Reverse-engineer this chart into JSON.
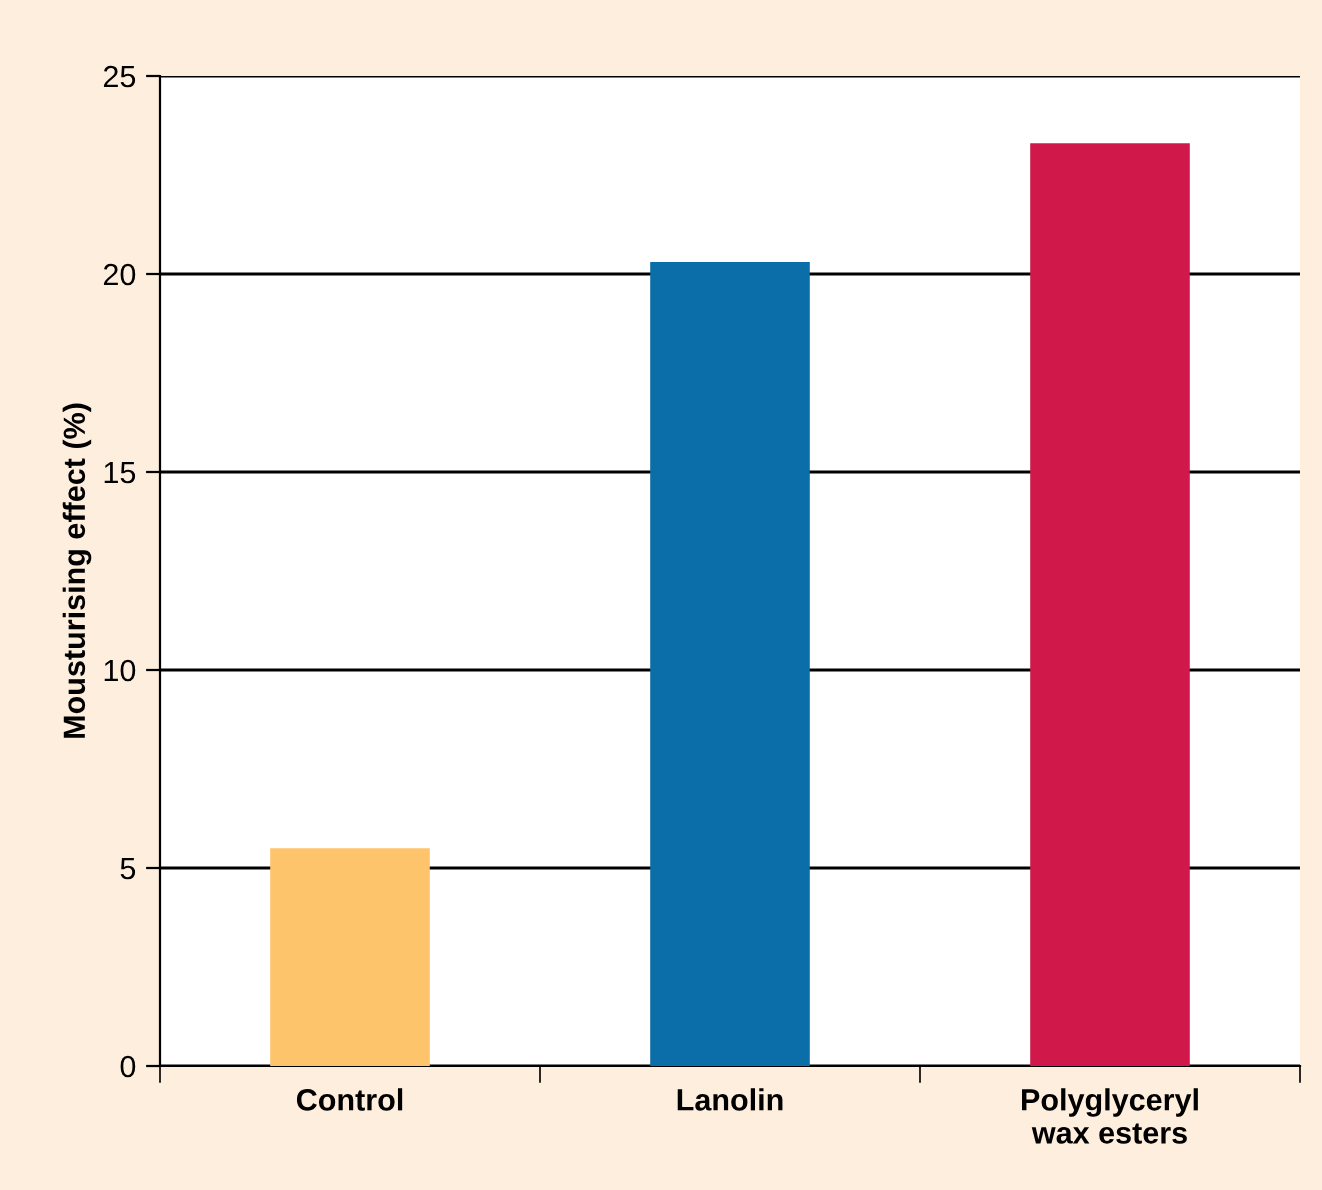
{
  "chart_data": {
    "type": "bar",
    "ylabel": "Mousturising effect (%)",
    "categories": [
      "Control",
      "Lanolin",
      "Polyglyceryl\nwax esters"
    ],
    "values": [
      5.5,
      20.3,
      23.3
    ],
    "colors": [
      "#fec46c",
      "#0b6ea8",
      "#d0184a"
    ],
    "ylim": [
      0,
      25
    ],
    "yticks": [
      0,
      5,
      10,
      15,
      20,
      25
    ],
    "grid": "y"
  }
}
